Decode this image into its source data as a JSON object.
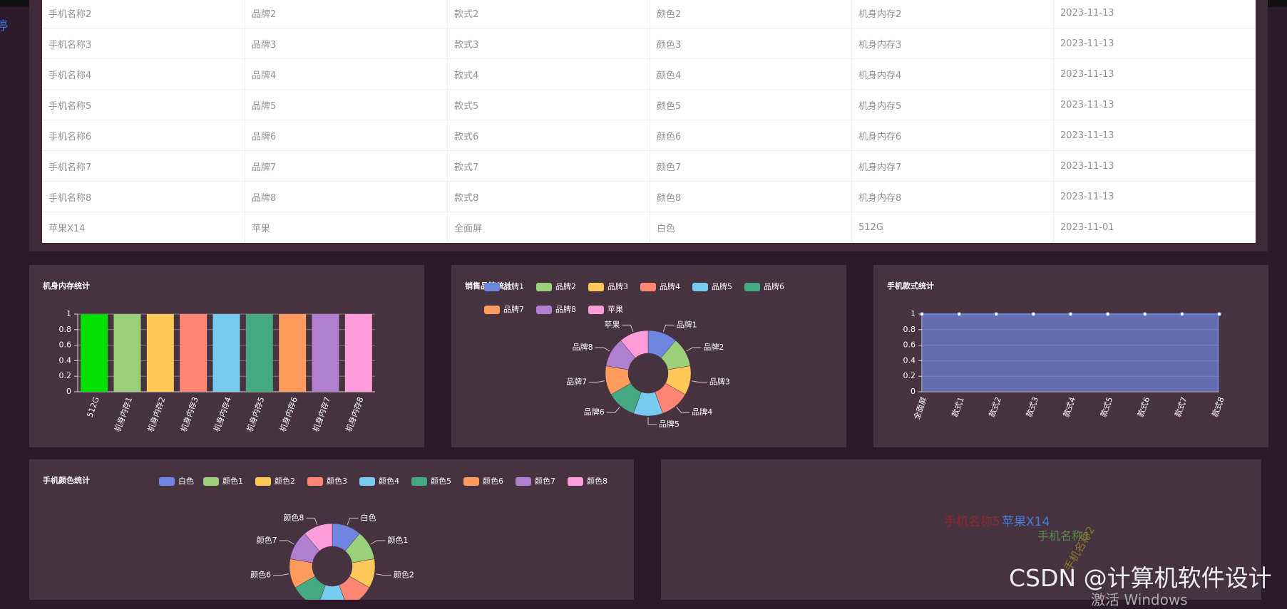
{
  "side_text": "停",
  "table": {
    "rows": [
      [
        "手机名称2",
        "品牌2",
        "款式2",
        "颜色2",
        "机身内存2",
        "2023-11-13"
      ],
      [
        "手机名称3",
        "品牌3",
        "款式3",
        "颜色3",
        "机身内存3",
        "2023-11-13"
      ],
      [
        "手机名称4",
        "品牌4",
        "款式4",
        "颜色4",
        "机身内存4",
        "2023-11-13"
      ],
      [
        "手机名称5",
        "品牌5",
        "款式5",
        "颜色5",
        "机身内存5",
        "2023-11-13"
      ],
      [
        "手机名称6",
        "品牌6",
        "款式6",
        "颜色6",
        "机身内存6",
        "2023-11-13"
      ],
      [
        "手机名称7",
        "品牌7",
        "款式7",
        "颜色7",
        "机身内存7",
        "2023-11-13"
      ],
      [
        "手机名称8",
        "品牌8",
        "款式8",
        "颜色8",
        "机身内存8",
        "2023-11-13"
      ],
      [
        "苹果X14",
        "苹果",
        "全面屏",
        "白色",
        "512G",
        "2023-11-01"
      ]
    ]
  },
  "chart_data": [
    {
      "type": "bar",
      "title": "机身内存统计",
      "categories": [
        "512G",
        "机身内存1",
        "机身内存2",
        "机身内存3",
        "机身内存4",
        "机身内存5",
        "机身内存6",
        "机身内存7",
        "机身内存8"
      ],
      "values": [
        1,
        1,
        1,
        1,
        1,
        1,
        1,
        1,
        1
      ],
      "colors": [
        "#00e000",
        "#9bd07a",
        "#ffc95a",
        "#ff8674",
        "#77cbee",
        "#45aa83",
        "#ff9b5c",
        "#b07fcf",
        "#ff9ddb"
      ],
      "ylim": [
        0,
        1
      ],
      "yticks": [
        0,
        0.2,
        0.4,
        0.6,
        0.8,
        1
      ],
      "grid": true
    },
    {
      "type": "pie",
      "title": "销售品牌统计",
      "categories": [
        "品牌1",
        "品牌2",
        "品牌3",
        "品牌4",
        "品牌5",
        "品牌6",
        "品牌7",
        "品牌8",
        "苹果"
      ],
      "values": [
        1,
        1,
        1,
        1,
        1,
        1,
        1,
        1,
        1
      ],
      "colors": [
        "#6f86e0",
        "#9bd07a",
        "#ffc95a",
        "#ff8674",
        "#77cbee",
        "#45aa83",
        "#ff9b5c",
        "#b07fcf",
        "#ff9ddb"
      ],
      "legend": "top-left"
    },
    {
      "type": "area",
      "title": "手机款式统计",
      "categories": [
        "全面屏",
        "款式1",
        "款式2",
        "款式3",
        "款式4",
        "款式5",
        "款式6",
        "款式7",
        "款式8"
      ],
      "values": [
        1,
        1,
        1,
        1,
        1,
        1,
        1,
        1,
        1
      ],
      "color": "#6f86e0",
      "ylim": [
        0,
        1
      ],
      "yticks": [
        0,
        0.2,
        0.4,
        0.6,
        0.8,
        1
      ],
      "grid": true
    },
    {
      "type": "pie",
      "title": "手机颜色统计",
      "categories": [
        "白色",
        "颜色1",
        "颜色2",
        "颜色3",
        "颜色4",
        "颜色5",
        "颜色6",
        "颜色7",
        "颜色8"
      ],
      "values": [
        1,
        1,
        1,
        1,
        1,
        1,
        1,
        1,
        1
      ],
      "colors": [
        "#6f86e0",
        "#9bd07a",
        "#ffc95a",
        "#ff8674",
        "#77cbee",
        "#45aa83",
        "#ff9b5c",
        "#b07fcf",
        "#ff9ddb"
      ],
      "legend": "top-right"
    }
  ],
  "word_cloud": {
    "words": [
      {
        "text": "手机名称5",
        "color": "#8b2c2c"
      },
      {
        "text": "苹果X14",
        "color": "#4a7de0"
      },
      {
        "text": "手机名称1",
        "color": "#5a8a4a"
      },
      {
        "text": "手机名称2",
        "color": "#8a7a2a"
      }
    ]
  },
  "watermark": "CSDN @计算机软件设计",
  "activation": "激活 Windows"
}
